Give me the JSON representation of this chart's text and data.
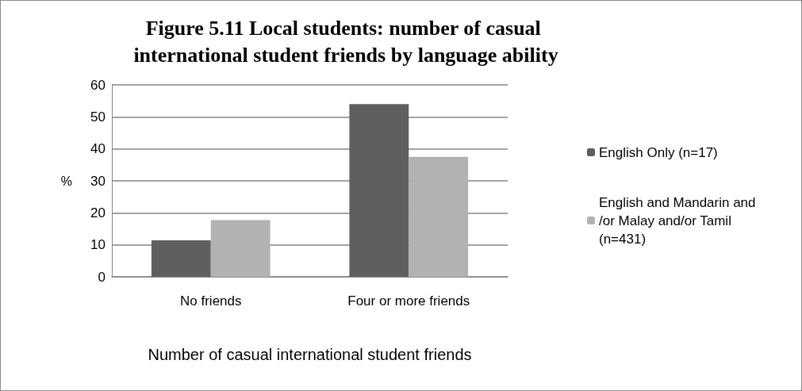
{
  "chart_data": {
    "type": "bar",
    "title": "Figure 5.11 Local students: number of casual international student friends by language ability",
    "xlabel": "Number of casual international student friends",
    "ylabel": "%",
    "categories": [
      "No friends",
      "Four or more friends"
    ],
    "series": [
      {
        "name": "English Only (n=17)",
        "color": "#5f5f5f",
        "values": [
          11.4,
          54.0
        ]
      },
      {
        "name": "English and Mandarin and/or Malay and/or Tamil (n=431)",
        "color": "#b2b2b2",
        "values": [
          17.7,
          37.5
        ]
      }
    ],
    "ylim": [
      0,
      60
    ],
    "yticks": [
      0,
      10,
      20,
      30,
      40,
      50,
      60
    ],
    "grid": "y",
    "legend": "right"
  }
}
